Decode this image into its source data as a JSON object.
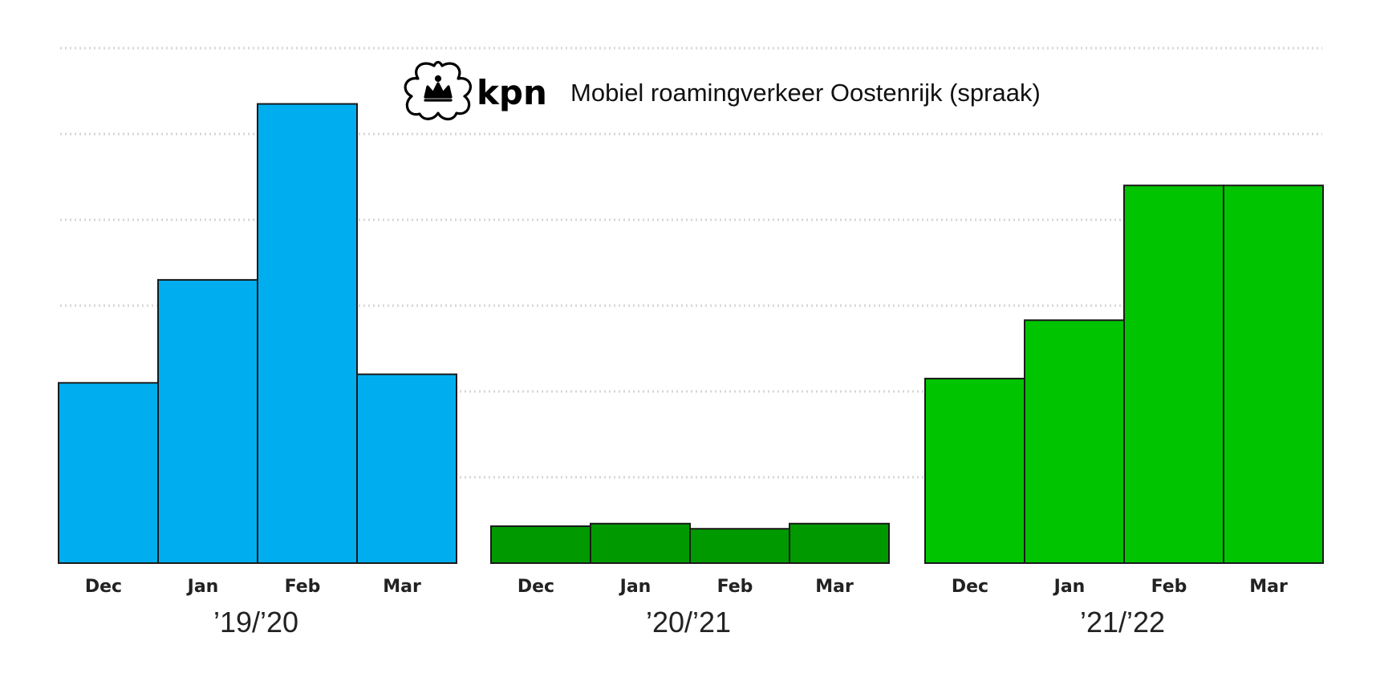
{
  "logo": {
    "brand": "kpn",
    "icon": "kpn-crown-logo"
  },
  "chart_data": {
    "type": "bar",
    "title": "Mobiel roamingverkeer Oostenrijk (spraak)",
    "xlabel": "",
    "ylabel": "",
    "ylim": [
      0,
      6
    ],
    "grid": true,
    "legend": "none",
    "categories": [
      "Dec",
      "Jan",
      "Feb",
      "Mar"
    ],
    "series": [
      {
        "period": "’19/’20",
        "color": "#00AEEF",
        "values": [
          2.1,
          3.3,
          5.35,
          2.2
        ]
      },
      {
        "period": "’20/’21",
        "color": "#009A00",
        "values": [
          0.43,
          0.46,
          0.4,
          0.46
        ]
      },
      {
        "period": "’21/’22",
        "color": "#00C400",
        "values": [
          2.15,
          2.83,
          4.4,
          4.4
        ]
      }
    ]
  }
}
